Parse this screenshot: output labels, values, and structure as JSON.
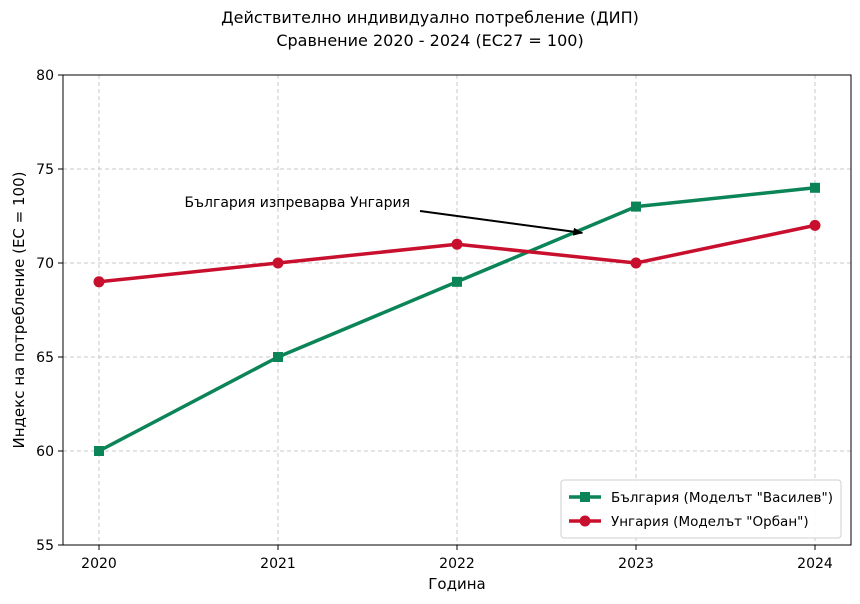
{
  "chart_data": {
    "type": "line",
    "title": "Действително индивидуално потребление (ДИП)",
    "subtitle": "Сравнение 2020 - 2024 (ЕС27 = 100)",
    "xlabel": "Година",
    "ylabel": "Индекс на потребление (ЕС = 100)",
    "x": [
      "2020",
      "2021",
      "2022",
      "2023",
      "2024"
    ],
    "ylim": [
      55,
      80
    ],
    "yticks": [
      55,
      60,
      65,
      70,
      75,
      80
    ],
    "grid": true,
    "legend_position": "lower-right",
    "series": [
      {
        "name": "България (Моделът \"Василев\")",
        "values": [
          60,
          65,
          69,
          73,
          74
        ],
        "color": "#0b8457",
        "marker": "square"
      },
      {
        "name": "Унгария (Моделът \"Орбан\")",
        "values": [
          69,
          70,
          71,
          70,
          72
        ],
        "color": "#c8102e",
        "marker": "circle"
      }
    ],
    "annotation": {
      "text": "България изпреварва Унгария",
      "x": "2022.7",
      "y": 71.6
    }
  }
}
